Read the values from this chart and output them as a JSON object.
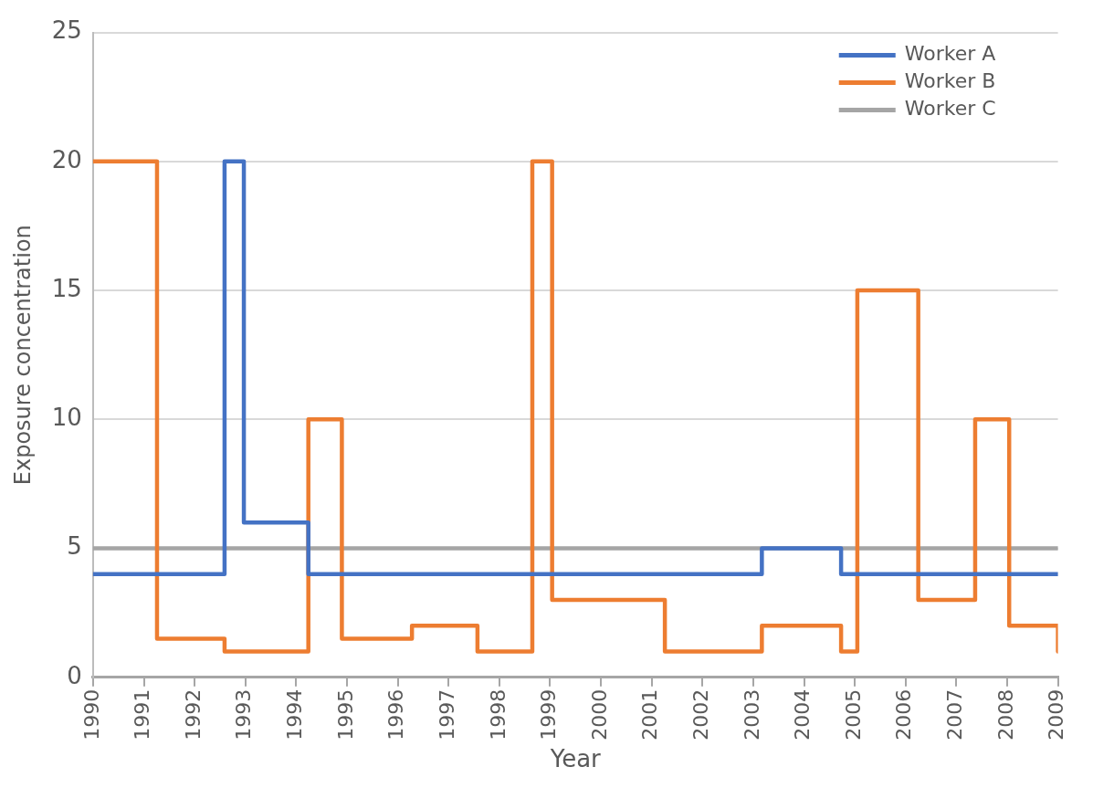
{
  "chart_data": {
    "type": "step",
    "xlabel": "Year",
    "ylabel": "Exposure concentration",
    "xlim": [
      1990,
      2009
    ],
    "xticks": [
      1990,
      1991,
      1992,
      1993,
      1994,
      1995,
      1996,
      1997,
      1998,
      1999,
      2000,
      2001,
      2002,
      2003,
      2004,
      2005,
      2006,
      2007,
      2008,
      2009
    ],
    "ylim": [
      0,
      25
    ],
    "yticks": [
      0,
      5,
      10,
      15,
      20,
      25
    ],
    "grid": "y",
    "legend": "top right",
    "series": [
      {
        "name": "Worker A",
        "color": "#4472c4",
        "x": [
          1990,
          1992.59,
          1992.97,
          1994.24,
          2003.17,
          2004.73,
          2009
        ],
        "values": [
          4,
          20,
          6,
          4,
          5,
          4,
          4
        ]
      },
      {
        "name": "Worker B",
        "color": "#ed7d31",
        "x": [
          1990,
          1991.26,
          1992.59,
          1994.24,
          1994.9,
          1996.28,
          1997.57,
          1998.65,
          1999.04,
          2001.26,
          2003.17,
          2004.73,
          2005.05,
          2006.25,
          2007.37,
          2008.04,
          2009
        ],
        "values": [
          20,
          1.5,
          1,
          10,
          1.5,
          2,
          1,
          20,
          3,
          1,
          2,
          1,
          15,
          3,
          10,
          2,
          1
        ]
      },
      {
        "name": "Worker C",
        "color": "#a5a5a5",
        "x": [
          1990,
          2009
        ],
        "values": [
          5,
          5
        ]
      }
    ]
  }
}
